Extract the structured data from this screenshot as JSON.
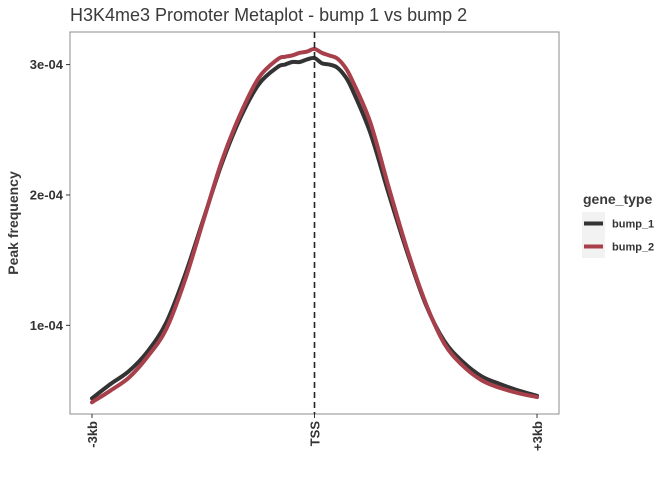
{
  "chart_data": {
    "type": "line",
    "title": "H3K4me3 Promoter Metaplot - bump 1 vs bump 2",
    "xlabel": "",
    "ylabel": "Peak frequency",
    "xlim": [
      -3000,
      3000
    ],
    "ylim": [
      3.2e-05,
      0.000325
    ],
    "x_ticks": [
      {
        "value": -3000,
        "label": "-3kb"
      },
      {
        "value": 0,
        "label": "TSS"
      },
      {
        "value": 3000,
        "label": "+3kb"
      }
    ],
    "y_ticks": [
      {
        "value": 0.0001,
        "label": "1e-04"
      },
      {
        "value": 0.0002,
        "label": "2e-04"
      },
      {
        "value": 0.0003,
        "label": "3e-04"
      }
    ],
    "vline": {
      "x": 0,
      "style": "dashed"
    },
    "grid": false,
    "legend": {
      "title": "gene_type",
      "position": "right"
    },
    "x": [
      -3000,
      -2750,
      -2500,
      -2250,
      -2000,
      -1750,
      -1500,
      -1250,
      -1000,
      -750,
      -500,
      -400,
      -300,
      -200,
      -100,
      0,
      100,
      200,
      300,
      400,
      500,
      750,
      1000,
      1250,
      1500,
      1750,
      2000,
      2250,
      2500,
      2750,
      3000
    ],
    "series": [
      {
        "name": "bump_1",
        "color": "#333333",
        "values": [
          4.4e-05,
          5.5e-05,
          6.5e-05,
          8e-05,
          0.000102,
          0.000138,
          0.000181,
          0.000224,
          0.000259,
          0.000285,
          0.000298,
          0.0003,
          0.000302,
          0.000302,
          0.000304,
          0.000305,
          0.000301,
          0.0003,
          0.000298,
          0.000292,
          0.000282,
          0.000248,
          0.000201,
          0.000156,
          0.000116,
          8.8e-05,
          7.2e-05,
          6.1e-05,
          5.5e-05,
          5e-05,
          4.6e-05
        ]
      },
      {
        "name": "bump_2",
        "color": "#a8404b",
        "values": [
          4.1e-05,
          5e-05,
          6e-05,
          7.6e-05,
          9.7e-05,
          0.000134,
          0.00018,
          0.000226,
          0.000262,
          0.00029,
          0.000304,
          0.000306,
          0.000307,
          0.000309,
          0.00031,
          0.000312,
          0.000309,
          0.000307,
          0.000305,
          0.000299,
          0.000289,
          0.000256,
          0.000206,
          0.000158,
          0.000117,
          8.6e-05,
          6.9e-05,
          5.8e-05,
          5.2e-05,
          4.8e-05,
          4.5e-05
        ]
      }
    ]
  }
}
